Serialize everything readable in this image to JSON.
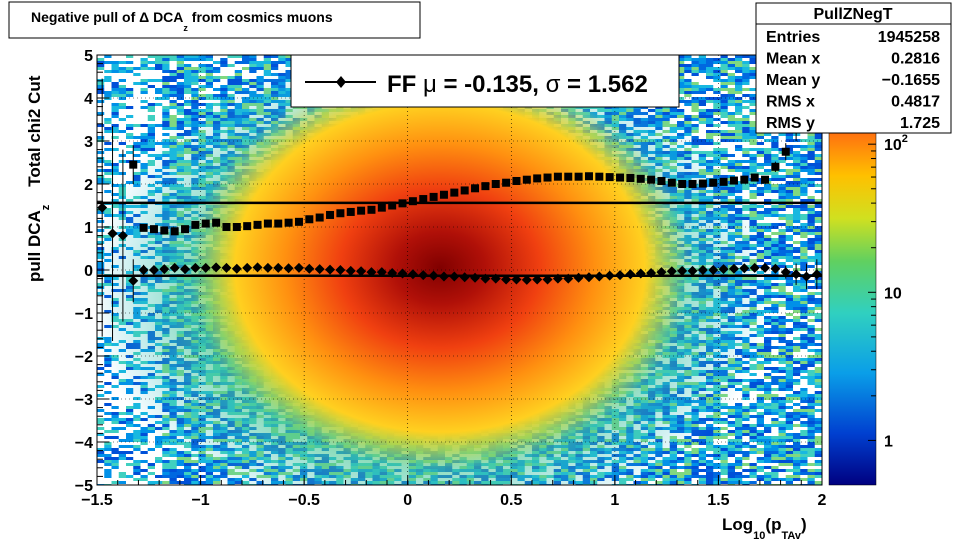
{
  "chart_data": {
    "type": "heatmap",
    "title": "Negative pull of Δ DCA",
    "title_sub": "z",
    "title_tail": " from cosmics muons",
    "xlabel_main": "Log",
    "xlabel_sub1": "10",
    "xlabel_mid": "(p",
    "xlabel_sub2": "TAv",
    "xlabel_end": ")",
    "ylabel_main": "pull DCA",
    "ylabel_sub": "z",
    "ylabel_extra": "Total chi2 Cut",
    "xlim": [
      -1.5,
      2
    ],
    "ylim": [
      -5,
      5
    ],
    "x_ticks": [
      "−1.5",
      "−1",
      "−0.5",
      "0",
      "0.5",
      "1",
      "1.5",
      "2"
    ],
    "y_ticks": [
      "−5",
      "−4",
      "−3",
      "−2",
      "−1",
      "0",
      "1",
      "2",
      "3",
      "4",
      "5"
    ],
    "colorbar": {
      "scale": "log",
      "range": [
        0.5,
        400
      ],
      "ticks": [
        "1",
        "10",
        "10"
      ],
      "tick_sup": "2"
    },
    "stats": {
      "name": "PullZNegT",
      "rows": [
        {
          "label": "Entries",
          "value": "1945258"
        },
        {
          "label": "Mean x",
          "value": "0.2816"
        },
        {
          "label": "Mean y",
          "value": "−0.1655"
        },
        {
          "label": "RMS x",
          "value": "0.4817"
        },
        {
          "label": "RMS y",
          "value": "1.725"
        }
      ]
    },
    "legend": {
      "label_pre": "FF ",
      "mu": "μ",
      "label_mid": " = -0.135, ",
      "sigma": "σ",
      "label_post": " =   1.562"
    },
    "fit_lines": {
      "mean": -0.135,
      "sigma": 1.562
    },
    "series": [
      {
        "name": "sigma",
        "marker": "square",
        "x": [
          -1.325,
          -1.275,
          -1.225,
          -1.175,
          -1.125,
          -1.075,
          -1.025,
          -0.975,
          -0.925,
          -0.875,
          -0.825,
          -0.775,
          -0.725,
          -0.675,
          -0.625,
          -0.575,
          -0.525,
          -0.475,
          -0.425,
          -0.375,
          -0.325,
          -0.275,
          -0.225,
          -0.175,
          -0.125,
          -0.075,
          -0.025,
          0.025,
          0.075,
          0.125,
          0.175,
          0.225,
          0.275,
          0.325,
          0.375,
          0.425,
          0.475,
          0.525,
          0.575,
          0.625,
          0.675,
          0.725,
          0.775,
          0.825,
          0.875,
          0.925,
          0.975,
          1.025,
          1.075,
          1.125,
          1.175,
          1.225,
          1.275,
          1.325,
          1.375,
          1.425,
          1.475,
          1.525,
          1.575,
          1.625,
          1.675,
          1.725,
          1.775,
          1.825,
          1.875,
          1.925
        ],
        "y": [
          2.45,
          0.98,
          0.95,
          0.92,
          0.9,
          0.95,
          1.05,
          1.08,
          1.1,
          1.0,
          1.0,
          1.02,
          1.05,
          1.08,
          1.08,
          1.1,
          1.12,
          1.18,
          1.22,
          1.28,
          1.32,
          1.35,
          1.38,
          1.4,
          1.45,
          1.5,
          1.55,
          1.6,
          1.65,
          1.7,
          1.75,
          1.8,
          1.85,
          1.9,
          1.95,
          2.0,
          2.03,
          2.07,
          2.1,
          2.13,
          2.15,
          2.17,
          2.17,
          2.17,
          2.18,
          2.17,
          2.16,
          2.15,
          2.14,
          2.12,
          2.1,
          2.07,
          2.03,
          2.0,
          2.0,
          2.01,
          2.03,
          2.05,
          2.08,
          2.1,
          2.15,
          2.1,
          2.4,
          2.75,
          3.5,
          4.6
        ],
        "yerr": [
          0.45,
          0.07,
          0.05,
          0.04,
          0.04,
          0.03,
          0.03,
          0.03,
          0.03,
          0.02,
          0.02,
          0.02,
          0.02,
          0.02,
          0.02,
          0.02,
          0.02,
          0.02,
          0.02,
          0.02,
          0.02,
          0.02,
          0.02,
          0.02,
          0.02,
          0.02,
          0.02,
          0.02,
          0.02,
          0.02,
          0.02,
          0.02,
          0.02,
          0.02,
          0.02,
          0.02,
          0.02,
          0.02,
          0.02,
          0.02,
          0.02,
          0.02,
          0.02,
          0.02,
          0.02,
          0.02,
          0.02,
          0.02,
          0.02,
          0.02,
          0.02,
          0.02,
          0.02,
          0.02,
          0.02,
          0.03,
          0.03,
          0.04,
          0.05,
          0.05,
          0.06,
          0.08,
          0.12,
          0.2,
          0.5,
          0.7
        ]
      },
      {
        "name": "mean",
        "marker": "diamond",
        "x": [
          -1.475,
          -1.425,
          -1.375,
          -1.325,
          -1.275,
          -1.225,
          -1.175,
          -1.125,
          -1.075,
          -1.025,
          -0.975,
          -0.925,
          -0.875,
          -0.825,
          -0.775,
          -0.725,
          -0.675,
          -0.625,
          -0.575,
          -0.525,
          -0.475,
          -0.425,
          -0.375,
          -0.325,
          -0.275,
          -0.225,
          -0.175,
          -0.125,
          -0.075,
          -0.025,
          0.025,
          0.075,
          0.125,
          0.175,
          0.225,
          0.275,
          0.325,
          0.375,
          0.425,
          0.475,
          0.525,
          0.575,
          0.625,
          0.675,
          0.725,
          0.775,
          0.825,
          0.875,
          0.925,
          0.975,
          1.025,
          1.075,
          1.125,
          1.175,
          1.225,
          1.275,
          1.325,
          1.375,
          1.425,
          1.475,
          1.525,
          1.575,
          1.625,
          1.675,
          1.725,
          1.775,
          1.825,
          1.875,
          1.925,
          1.975
        ],
        "y": [
          1.45,
          0.85,
          0.8,
          -0.25,
          0.0,
          0.0,
          0.02,
          0.05,
          0.02,
          0.05,
          0.05,
          0.06,
          0.05,
          0.03,
          0.05,
          0.06,
          0.05,
          0.05,
          0.04,
          0.05,
          0.03,
          0.02,
          0.01,
          0.0,
          -0.02,
          -0.03,
          -0.05,
          -0.05,
          -0.07,
          -0.08,
          -0.1,
          -0.12,
          -0.13,
          -0.15,
          -0.15,
          -0.17,
          -0.18,
          -0.2,
          -0.2,
          -0.22,
          -0.22,
          -0.23,
          -0.22,
          -0.22,
          -0.2,
          -0.2,
          -0.18,
          -0.17,
          -0.15,
          -0.13,
          -0.12,
          -0.1,
          -0.08,
          -0.07,
          -0.05,
          -0.03,
          -0.02,
          -0.02,
          0.0,
          0.0,
          0.02,
          0.03,
          0.04,
          0.05,
          0.05,
          0.03,
          -0.05,
          -0.1,
          -0.15,
          -0.1
        ],
        "yerr": [
          3.0,
          2.5,
          2.0,
          0.5,
          0.12,
          0.08,
          0.06,
          0.05,
          0.04,
          0.04,
          0.03,
          0.03,
          0.03,
          0.02,
          0.02,
          0.02,
          0.02,
          0.02,
          0.02,
          0.02,
          0.02,
          0.02,
          0.02,
          0.02,
          0.02,
          0.02,
          0.02,
          0.02,
          0.02,
          0.02,
          0.02,
          0.02,
          0.02,
          0.02,
          0.02,
          0.02,
          0.02,
          0.02,
          0.02,
          0.02,
          0.02,
          0.02,
          0.02,
          0.02,
          0.02,
          0.02,
          0.02,
          0.02,
          0.02,
          0.02,
          0.02,
          0.02,
          0.02,
          0.02,
          0.02,
          0.02,
          0.03,
          0.03,
          0.04,
          0.04,
          0.05,
          0.05,
          0.06,
          0.07,
          0.08,
          0.1,
          0.15,
          0.25,
          0.3,
          0.35
        ]
      }
    ]
  }
}
